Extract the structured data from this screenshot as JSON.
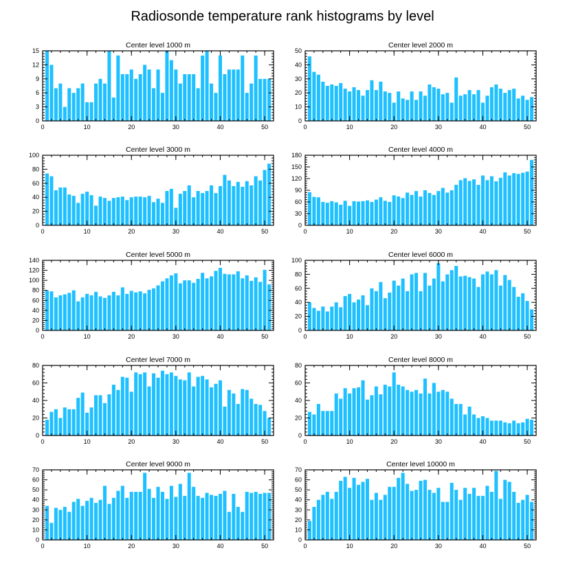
{
  "colors": {
    "bar": "#1ec0ff",
    "axis": "#000000",
    "background": "#ffffff"
  },
  "chart_data": {
    "title": "Radiosonde temperature rank histograms by level",
    "panels": [
      {
        "type": "bar",
        "title": "Center level 1000 m",
        "xlabel": "",
        "ylabel": "",
        "xlim": [
          0,
          52
        ],
        "ylim": [
          0,
          15
        ],
        "xticks": [
          0,
          10,
          20,
          30,
          40,
          50
        ],
        "yticks": [
          0,
          3,
          6,
          9,
          12,
          15
        ],
        "x": [
          1,
          2,
          3,
          4,
          5,
          6,
          7,
          8,
          9,
          10,
          11,
          12,
          13,
          14,
          15,
          16,
          17,
          18,
          19,
          20,
          21,
          22,
          23,
          24,
          25,
          26,
          27,
          28,
          29,
          30,
          31,
          32,
          33,
          34,
          35,
          36,
          37,
          38,
          39,
          40,
          41,
          42,
          43,
          44,
          45,
          46,
          47,
          48,
          49,
          50,
          51
        ],
        "values": [
          15,
          12,
          7,
          8,
          3,
          7,
          6,
          7,
          8,
          4,
          4,
          8,
          9,
          8,
          15,
          5,
          14,
          10,
          10,
          11,
          9,
          10,
          12,
          11,
          7,
          11,
          6,
          15,
          13,
          11,
          8,
          10,
          10,
          10,
          7,
          14,
          15,
          8,
          6,
          14,
          10,
          11,
          11,
          11,
          14,
          6,
          8,
          14,
          9,
          9,
          9
        ]
      },
      {
        "type": "bar",
        "title": "Center level 2000 m",
        "xlabel": "",
        "ylabel": "",
        "xlim": [
          0,
          52
        ],
        "ylim": [
          0,
          50
        ],
        "xticks": [
          0,
          10,
          20,
          30,
          40,
          50
        ],
        "yticks": [
          0,
          10,
          20,
          30,
          40,
          50
        ],
        "x": [
          1,
          2,
          3,
          4,
          5,
          6,
          7,
          8,
          9,
          10,
          11,
          12,
          13,
          14,
          15,
          16,
          17,
          18,
          19,
          20,
          21,
          22,
          23,
          24,
          25,
          26,
          27,
          28,
          29,
          30,
          31,
          32,
          33,
          34,
          35,
          36,
          37,
          38,
          39,
          40,
          41,
          42,
          43,
          44,
          45,
          46,
          47,
          48,
          49,
          50,
          51
        ],
        "values": [
          46,
          35,
          33,
          28,
          25,
          26,
          25,
          27,
          23,
          21,
          24,
          22,
          18,
          22,
          29,
          22,
          28,
          21,
          20,
          13,
          21,
          16,
          15,
          21,
          15,
          21,
          18,
          26,
          24,
          23,
          19,
          20,
          13,
          31,
          18,
          19,
          22,
          19,
          22,
          13,
          18,
          24,
          26,
          23,
          20,
          22,
          23,
          16,
          18,
          15,
          17
        ]
      },
      {
        "type": "bar",
        "title": "Center level 3000 m",
        "xlabel": "",
        "ylabel": "",
        "xlim": [
          0,
          52
        ],
        "ylim": [
          0,
          100
        ],
        "xticks": [
          0,
          10,
          20,
          30,
          40,
          50
        ],
        "yticks": [
          0,
          20,
          40,
          60,
          80,
          100
        ],
        "x": [
          1,
          2,
          3,
          4,
          5,
          6,
          7,
          8,
          9,
          10,
          11,
          12,
          13,
          14,
          15,
          16,
          17,
          18,
          19,
          20,
          21,
          22,
          23,
          24,
          25,
          26,
          27,
          28,
          29,
          30,
          31,
          32,
          33,
          34,
          35,
          36,
          37,
          38,
          39,
          40,
          41,
          42,
          43,
          44,
          45,
          46,
          47,
          48,
          49,
          50,
          51
        ],
        "values": [
          74,
          70,
          50,
          54,
          54,
          44,
          42,
          32,
          45,
          48,
          43,
          28,
          41,
          39,
          35,
          39,
          40,
          41,
          36,
          40,
          41,
          41,
          40,
          42,
          33,
          38,
          32,
          49,
          52,
          25,
          45,
          49,
          57,
          40,
          49,
          46,
          49,
          57,
          46,
          56,
          72,
          64,
          56,
          62,
          55,
          63,
          57,
          70,
          64,
          79,
          88
        ]
      },
      {
        "type": "bar",
        "title": "Center level 4000 m",
        "xlabel": "",
        "ylabel": "",
        "xlim": [
          0,
          52
        ],
        "ylim": [
          0,
          180
        ],
        "xticks": [
          0,
          10,
          20,
          30,
          40,
          50
        ],
        "yticks": [
          0,
          30,
          60,
          90,
          120,
          150,
          180
        ],
        "x": [
          1,
          2,
          3,
          4,
          5,
          6,
          7,
          8,
          9,
          10,
          11,
          12,
          13,
          14,
          15,
          16,
          17,
          18,
          19,
          20,
          21,
          22,
          23,
          24,
          25,
          26,
          27,
          28,
          29,
          30,
          31,
          32,
          33,
          34,
          35,
          36,
          37,
          38,
          39,
          40,
          41,
          42,
          43,
          44,
          45,
          46,
          47,
          48,
          49,
          50,
          51
        ],
        "values": [
          85,
          73,
          72,
          60,
          58,
          62,
          59,
          53,
          63,
          50,
          62,
          61,
          62,
          64,
          60,
          66,
          72,
          63,
          60,
          77,
          74,
          70,
          84,
          78,
          88,
          74,
          90,
          83,
          78,
          88,
          96,
          84,
          90,
          104,
          116,
          121,
          114,
          118,
          104,
          128,
          116,
          126,
          113,
          122,
          136,
          128,
          134,
          132,
          135,
          138,
          168
        ]
      },
      {
        "type": "bar",
        "title": "Center level 5000 m",
        "xlabel": "",
        "ylabel": "",
        "xlim": [
          0,
          52
        ],
        "ylim": [
          0,
          140
        ],
        "xticks": [
          0,
          10,
          20,
          30,
          40,
          50
        ],
        "yticks": [
          0,
          20,
          40,
          60,
          80,
          100,
          120,
          140
        ],
        "x": [
          1,
          2,
          3,
          4,
          5,
          6,
          7,
          8,
          9,
          10,
          11,
          12,
          13,
          14,
          15,
          16,
          17,
          18,
          19,
          20,
          21,
          22,
          23,
          24,
          25,
          26,
          27,
          28,
          29,
          30,
          31,
          32,
          33,
          34,
          35,
          36,
          37,
          38,
          39,
          40,
          41,
          42,
          43,
          44,
          45,
          46,
          47,
          48,
          49,
          50,
          51
        ],
        "values": [
          80,
          78,
          66,
          70,
          72,
          75,
          80,
          58,
          66,
          73,
          70,
          77,
          68,
          65,
          70,
          77,
          70,
          86,
          73,
          79,
          76,
          78,
          74,
          81,
          84,
          90,
          98,
          104,
          110,
          114,
          94,
          100,
          100,
          95,
          103,
          115,
          104,
          108,
          119,
          125,
          113,
          112,
          112,
          118,
          104,
          110,
          99,
          106,
          97,
          121,
          92
        ]
      },
      {
        "type": "bar",
        "title": "Center level 6000 m",
        "xlabel": "",
        "ylabel": "",
        "xlim": [
          0,
          52
        ],
        "ylim": [
          0,
          100
        ],
        "xticks": [
          0,
          10,
          20,
          30,
          40,
          50
        ],
        "yticks": [
          0,
          20,
          40,
          60,
          80,
          100
        ],
        "x": [
          1,
          2,
          3,
          4,
          5,
          6,
          7,
          8,
          9,
          10,
          11,
          12,
          13,
          14,
          15,
          16,
          17,
          18,
          19,
          20,
          21,
          22,
          23,
          24,
          25,
          26,
          27,
          28,
          29,
          30,
          31,
          32,
          33,
          34,
          35,
          36,
          37,
          38,
          39,
          40,
          41,
          42,
          43,
          44,
          45,
          46,
          47,
          48,
          49,
          50,
          51
        ],
        "values": [
          40,
          32,
          28,
          34,
          27,
          34,
          40,
          33,
          49,
          52,
          40,
          44,
          50,
          36,
          60,
          56,
          69,
          46,
          54,
          71,
          64,
          74,
          56,
          80,
          82,
          56,
          82,
          64,
          74,
          96,
          70,
          80,
          86,
          92,
          77,
          78,
          76,
          74,
          62,
          80,
          84,
          80,
          86,
          64,
          79,
          72,
          62,
          48,
          53,
          42,
          30
        ]
      },
      {
        "type": "bar",
        "title": "Center level 7000 m",
        "xlabel": "",
        "ylabel": "",
        "xlim": [
          0,
          52
        ],
        "ylim": [
          0,
          80
        ],
        "xticks": [
          0,
          10,
          20,
          30,
          40,
          50
        ],
        "yticks": [
          0,
          20,
          40,
          60,
          80
        ],
        "x": [
          1,
          2,
          3,
          4,
          5,
          6,
          7,
          8,
          9,
          10,
          11,
          12,
          13,
          14,
          15,
          16,
          17,
          18,
          19,
          20,
          21,
          22,
          23,
          24,
          25,
          26,
          27,
          28,
          29,
          30,
          31,
          32,
          33,
          34,
          35,
          36,
          37,
          38,
          39,
          40,
          41,
          42,
          43,
          44,
          45,
          46,
          47,
          48,
          49,
          50,
          51
        ],
        "values": [
          18,
          27,
          30,
          20,
          32,
          30,
          30,
          43,
          49,
          26,
          32,
          46,
          46,
          37,
          47,
          58,
          52,
          67,
          66,
          50,
          72,
          70,
          72,
          56,
          71,
          66,
          74,
          70,
          72,
          68,
          64,
          63,
          72,
          56,
          67,
          68,
          64,
          55,
          59,
          63,
          33,
          52,
          48,
          36,
          53,
          52,
          42,
          36,
          35,
          28,
          20
        ]
      },
      {
        "type": "bar",
        "title": "Center level 8000 m",
        "xlabel": "",
        "ylabel": "",
        "xlim": [
          0,
          52
        ],
        "ylim": [
          0,
          80
        ],
        "xticks": [
          0,
          10,
          20,
          30,
          40,
          50
        ],
        "yticks": [
          0,
          20,
          40,
          60,
          80
        ],
        "x": [
          1,
          2,
          3,
          4,
          5,
          6,
          7,
          8,
          9,
          10,
          11,
          12,
          13,
          14,
          15,
          16,
          17,
          18,
          19,
          20,
          21,
          22,
          23,
          24,
          25,
          26,
          27,
          28,
          29,
          30,
          31,
          32,
          33,
          34,
          35,
          36,
          37,
          38,
          39,
          40,
          41,
          42,
          43,
          44,
          45,
          46,
          47,
          48,
          49,
          50,
          51
        ],
        "values": [
          27,
          24,
          36,
          28,
          28,
          28,
          48,
          42,
          54,
          48,
          54,
          55,
          63,
          41,
          46,
          56,
          47,
          58,
          56,
          72,
          58,
          56,
          52,
          50,
          52,
          48,
          65,
          48,
          60,
          50,
          52,
          50,
          42,
          36,
          36,
          24,
          33,
          24,
          20,
          22,
          20,
          17,
          17,
          17,
          15,
          14,
          17,
          14,
          15,
          19,
          18
        ]
      },
      {
        "type": "bar",
        "title": "Center level 9000 m",
        "xlabel": "",
        "ylabel": "",
        "xlim": [
          0,
          52
        ],
        "ylim": [
          0,
          70
        ],
        "xticks": [
          0,
          10,
          20,
          30,
          40,
          50
        ],
        "yticks": [
          0,
          10,
          20,
          30,
          40,
          50,
          60,
          70
        ],
        "x": [
          1,
          2,
          3,
          4,
          5,
          6,
          7,
          8,
          9,
          10,
          11,
          12,
          13,
          14,
          15,
          16,
          17,
          18,
          19,
          20,
          21,
          22,
          23,
          24,
          25,
          26,
          27,
          28,
          29,
          30,
          31,
          32,
          33,
          34,
          35,
          36,
          37,
          38,
          39,
          40,
          41,
          42,
          43,
          44,
          45,
          46,
          47,
          48,
          49,
          50,
          51
        ],
        "values": [
          34,
          17,
          32,
          30,
          33,
          28,
          38,
          41,
          34,
          39,
          42,
          37,
          40,
          54,
          36,
          42,
          49,
          54,
          42,
          48,
          48,
          48,
          67,
          51,
          42,
          53,
          48,
          41,
          54,
          43,
          56,
          44,
          67,
          53,
          44,
          42,
          47,
          45,
          44,
          46,
          49,
          28,
          46,
          33,
          28,
          48,
          47,
          48,
          46,
          47,
          47
        ]
      },
      {
        "type": "bar",
        "title": "Center level 10000 m",
        "xlabel": "",
        "ylabel": "",
        "xlim": [
          0,
          52
        ],
        "ylim": [
          0,
          70
        ],
        "xticks": [
          0,
          10,
          20,
          30,
          40,
          50
        ],
        "yticks": [
          0,
          10,
          20,
          30,
          40,
          50,
          60,
          70
        ],
        "x": [
          1,
          2,
          3,
          4,
          5,
          6,
          7,
          8,
          9,
          10,
          11,
          12,
          13,
          14,
          15,
          16,
          17,
          18,
          19,
          20,
          21,
          22,
          23,
          24,
          25,
          26,
          27,
          28,
          29,
          30,
          31,
          32,
          33,
          34,
          35,
          36,
          37,
          38,
          39,
          40,
          41,
          42,
          43,
          44,
          45,
          46,
          47,
          48,
          49,
          50,
          51
        ],
        "values": [
          19,
          33,
          40,
          45,
          48,
          41,
          48,
          59,
          63,
          52,
          62,
          55,
          58,
          61,
          40,
          47,
          40,
          45,
          53,
          53,
          62,
          67,
          56,
          49,
          50,
          59,
          60,
          50,
          47,
          52,
          38,
          38,
          57,
          50,
          40,
          52,
          46,
          52,
          44,
          44,
          54,
          48,
          69,
          41,
          60,
          58,
          48,
          37,
          40,
          45,
          38
        ]
      }
    ]
  }
}
